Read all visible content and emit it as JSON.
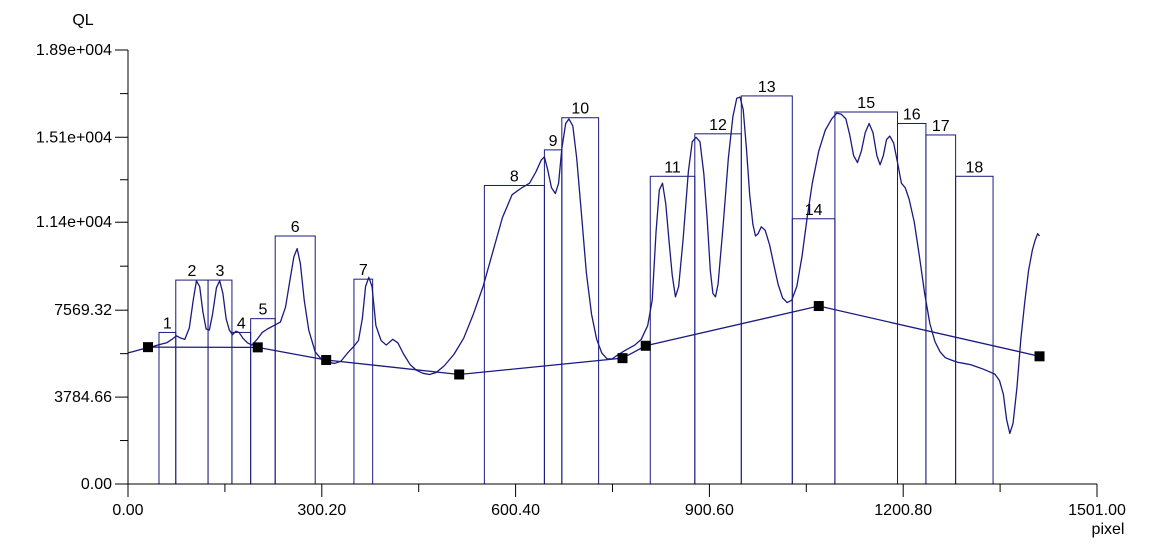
{
  "chart_data": {
    "type": "line",
    "title": "",
    "xlabel": "pixel",
    "ylabel": "QL",
    "xlim": [
      0,
      1501
    ],
    "ylim": [
      0,
      18900
    ],
    "x_ticks": [
      {
        "value": 0,
        "label": "0.00"
      },
      {
        "value": 300.2,
        "label": "300.20"
      },
      {
        "value": 600.4,
        "label": "600.40"
      },
      {
        "value": 900.6,
        "label": "900.60"
      },
      {
        "value": 1200.8,
        "label": "1200.80"
      },
      {
        "value": 1501,
        "label": "1501.00"
      }
    ],
    "x_minor_ticks": [
      150.1,
      450.3,
      750.5,
      1050.7,
      1350.9
    ],
    "y_ticks": [
      {
        "value": 0,
        "label": "0.00"
      },
      {
        "value": 3784.66,
        "label": "3784.66"
      },
      {
        "value": 7569.32,
        "label": "7569.32"
      },
      {
        "value": 11400,
        "label": "1.14e+004"
      },
      {
        "value": 15100,
        "label": "1.51e+004"
      },
      {
        "value": 18900,
        "label": "1.89e+004"
      }
    ],
    "y_minor_ticks": [
      1892.33,
      5676.99,
      9485,
      13250,
      17000
    ],
    "profile": [
      [
        0,
        5710
      ],
      [
        10,
        5780
      ],
      [
        20,
        5860
      ],
      [
        35,
        5960
      ],
      [
        50,
        6080
      ],
      [
        60,
        6150
      ],
      [
        68,
        6300
      ],
      [
        75,
        6450
      ],
      [
        82,
        6350
      ],
      [
        88,
        6300
      ],
      [
        95,
        6800
      ],
      [
        101,
        8000
      ],
      [
        106,
        8850
      ],
      [
        111,
        8600
      ],
      [
        116,
        7500
      ],
      [
        121,
        6750
      ],
      [
        126,
        6700
      ],
      [
        131,
        7400
      ],
      [
        137,
        8550
      ],
      [
        142,
        8850
      ],
      [
        147,
        8300
      ],
      [
        152,
        7200
      ],
      [
        157,
        6700
      ],
      [
        162,
        6500
      ],
      [
        167,
        6650
      ],
      [
        172,
        6600
      ],
      [
        178,
        6350
      ],
      [
        185,
        6150
      ],
      [
        192,
        6050
      ],
      [
        200,
        6300
      ],
      [
        208,
        6600
      ],
      [
        216,
        6750
      ],
      [
        226,
        6900
      ],
      [
        236,
        7050
      ],
      [
        244,
        7700
      ],
      [
        251,
        8900
      ],
      [
        257,
        9900
      ],
      [
        262,
        10250
      ],
      [
        267,
        9600
      ],
      [
        273,
        8000
      ],
      [
        280,
        6700
      ],
      [
        290,
        5750
      ],
      [
        300,
        5420
      ],
      [
        310,
        5300
      ],
      [
        320,
        5250
      ],
      [
        330,
        5350
      ],
      [
        340,
        5700
      ],
      [
        350,
        6000
      ],
      [
        357,
        6250
      ],
      [
        363,
        7200
      ],
      [
        368,
        8600
      ],
      [
        373,
        9000
      ],
      [
        378,
        8600
      ],
      [
        384,
        6900
      ],
      [
        392,
        6250
      ],
      [
        400,
        6050
      ],
      [
        410,
        6300
      ],
      [
        418,
        6150
      ],
      [
        427,
        5650
      ],
      [
        437,
        5200
      ],
      [
        447,
        4950
      ],
      [
        457,
        4820
      ],
      [
        467,
        4770
      ],
      [
        477,
        4850
      ],
      [
        490,
        5150
      ],
      [
        505,
        5650
      ],
      [
        520,
        6350
      ],
      [
        535,
        7400
      ],
      [
        550,
        8600
      ],
      [
        565,
        10100
      ],
      [
        580,
        11600
      ],
      [
        595,
        12600
      ],
      [
        610,
        12900
      ],
      [
        622,
        13100
      ],
      [
        632,
        13600
      ],
      [
        640,
        14100
      ],
      [
        645,
        14250
      ],
      [
        650,
        13700
      ],
      [
        656,
        12900
      ],
      [
        662,
        12650
      ],
      [
        667,
        13100
      ],
      [
        672,
        14600
      ],
      [
        678,
        15700
      ],
      [
        683,
        15900
      ],
      [
        689,
        15600
      ],
      [
        695,
        14200
      ],
      [
        702,
        11900
      ],
      [
        710,
        9200
      ],
      [
        718,
        7400
      ],
      [
        726,
        6300
      ],
      [
        734,
        5700
      ],
      [
        742,
        5450
      ],
      [
        750,
        5450
      ],
      [
        760,
        5650
      ],
      [
        772,
        5850
      ],
      [
        785,
        6050
      ],
      [
        795,
        6300
      ],
      [
        805,
        6900
      ],
      [
        812,
        8000
      ],
      [
        818,
        11000
      ],
      [
        823,
        12800
      ],
      [
        828,
        13100
      ],
      [
        833,
        12200
      ],
      [
        838,
        10600
      ],
      [
        843,
        9100
      ],
      [
        848,
        8150
      ],
      [
        853,
        8600
      ],
      [
        860,
        10700
      ],
      [
        868,
        13600
      ],
      [
        874,
        14900
      ],
      [
        880,
        15100
      ],
      [
        886,
        14900
      ],
      [
        892,
        13500
      ],
      [
        897,
        11600
      ],
      [
        902,
        9300
      ],
      [
        906,
        8300
      ],
      [
        910,
        8150
      ],
      [
        914,
        8700
      ],
      [
        922,
        11300
      ],
      [
        930,
        14200
      ],
      [
        937,
        16000
      ],
      [
        943,
        16800
      ],
      [
        948,
        16850
      ],
      [
        953,
        16300
      ],
      [
        958,
        14600
      ],
      [
        963,
        12600
      ],
      [
        968,
        11300
      ],
      [
        972,
        10800
      ],
      [
        976,
        10900
      ],
      [
        981,
        11200
      ],
      [
        987,
        11050
      ],
      [
        994,
        10400
      ],
      [
        1000,
        9600
      ],
      [
        1007,
        8700
      ],
      [
        1014,
        8100
      ],
      [
        1021,
        7900
      ],
      [
        1028,
        8000
      ],
      [
        1036,
        8600
      ],
      [
        1044,
        9900
      ],
      [
        1052,
        11600
      ],
      [
        1060,
        13100
      ],
      [
        1070,
        14500
      ],
      [
        1080,
        15400
      ],
      [
        1090,
        15900
      ],
      [
        1098,
        16150
      ],
      [
        1105,
        16100
      ],
      [
        1112,
        15900
      ],
      [
        1118,
        15200
      ],
      [
        1124,
        14300
      ],
      [
        1130,
        14000
      ],
      [
        1136,
        14500
      ],
      [
        1142,
        15300
      ],
      [
        1148,
        15700
      ],
      [
        1154,
        15300
      ],
      [
        1160,
        14300
      ],
      [
        1165,
        13900
      ],
      [
        1170,
        14300
      ],
      [
        1175,
        15000
      ],
      [
        1180,
        15150
      ],
      [
        1186,
        14850
      ],
      [
        1192,
        14000
      ],
      [
        1198,
        13100
      ],
      [
        1204,
        12900
      ],
      [
        1210,
        12400
      ],
      [
        1218,
        11400
      ],
      [
        1226,
        9900
      ],
      [
        1234,
        8300
      ],
      [
        1242,
        7000
      ],
      [
        1250,
        6200
      ],
      [
        1258,
        5750
      ],
      [
        1266,
        5500
      ],
      [
        1275,
        5400
      ],
      [
        1285,
        5300
      ],
      [
        1295,
        5250
      ],
      [
        1305,
        5200
      ],
      [
        1315,
        5100
      ],
      [
        1325,
        5000
      ],
      [
        1335,
        4880
      ],
      [
        1343,
        4780
      ],
      [
        1350,
        4500
      ],
      [
        1356,
        3900
      ],
      [
        1361,
        2800
      ],
      [
        1366,
        2200
      ],
      [
        1371,
        2650
      ],
      [
        1377,
        4200
      ],
      [
        1383,
        6300
      ],
      [
        1389,
        7900
      ],
      [
        1395,
        9300
      ],
      [
        1401,
        10200
      ],
      [
        1405,
        10600
      ],
      [
        1409,
        10900
      ],
      [
        1412,
        10800
      ]
    ],
    "baseline": [
      [
        31,
        5960
      ],
      [
        201,
        5950
      ],
      [
        307,
        5400
      ],
      [
        513,
        4770
      ],
      [
        766,
        5480
      ],
      [
        802,
        6020
      ],
      [
        1070,
        7750
      ],
      [
        1412,
        5560
      ]
    ],
    "markers": [
      [
        31,
        5960
      ],
      [
        201,
        5950
      ],
      [
        307,
        5400
      ],
      [
        513,
        4770
      ],
      [
        766,
        5480
      ],
      [
        802,
        6020
      ],
      [
        1070,
        7750
      ],
      [
        1412,
        5560
      ]
    ],
    "peak_boxes": [
      {
        "label": "1",
        "x0": 48,
        "x1": 74,
        "top": 6600
      },
      {
        "label": "2",
        "x0": 74,
        "x1": 124,
        "top": 8880
      },
      {
        "label": "3",
        "x0": 124,
        "x1": 161,
        "top": 8880
      },
      {
        "label": "4",
        "x0": 161,
        "x1": 190,
        "top": 6600
      },
      {
        "label": "5",
        "x0": 190,
        "x1": 228,
        "top": 7200
      },
      {
        "label": "6",
        "x0": 228,
        "x1": 290,
        "top": 10800
      },
      {
        "label": "7",
        "x0": 350,
        "x1": 379,
        "top": 8920
      },
      {
        "label": "8",
        "x0": 552,
        "x1": 645,
        "top": 13000
      },
      {
        "label": "9",
        "x0": 645,
        "x1": 672,
        "top": 14550
      },
      {
        "label": "10",
        "x0": 672,
        "x1": 729,
        "top": 15950
      },
      {
        "label": "11",
        "x0": 809,
        "x1": 878,
        "top": 13400
      },
      {
        "label": "12",
        "x0": 878,
        "x1": 950,
        "top": 15250
      },
      {
        "label": "13",
        "x0": 950,
        "x1": 1029,
        "top": 16900
      },
      {
        "label": "14",
        "x0": 1029,
        "x1": 1095,
        "top": 11550
      },
      {
        "label": "15",
        "x0": 1095,
        "x1": 1192,
        "top": 16200
      },
      {
        "label": "16",
        "x0": 1192,
        "x1": 1236,
        "top": 15700
      },
      {
        "label": "17",
        "x0": 1236,
        "x1": 1282,
        "top": 15200
      },
      {
        "label": "18",
        "x0": 1282,
        "x1": 1340,
        "top": 13400
      }
    ],
    "colors": {
      "line": "#1a1a80",
      "box": "#1a1a80",
      "marker": "#000000",
      "axis": "#000000"
    },
    "grid": false,
    "legend": "none"
  }
}
